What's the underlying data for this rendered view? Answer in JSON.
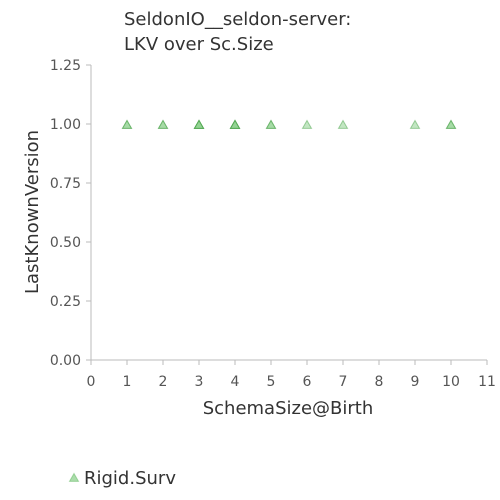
{
  "chart_data": {
    "type": "scatter",
    "title_lines": [
      "SeldonIO__seldon-server:",
      "LKV over Sc.Size"
    ],
    "xlabel": "SchemaSize@Birth",
    "ylabel": "LastKnownVersion",
    "xlim": [
      0,
      11
    ],
    "ylim": [
      0,
      1.25
    ],
    "x_ticks": [
      "0",
      "1",
      "2",
      "3",
      "4",
      "5",
      "6",
      "7",
      "8",
      "9",
      "10",
      "11"
    ],
    "y_ticks": [
      "0.00",
      "0.25",
      "0.50",
      "0.75",
      "1.00",
      "1.25"
    ],
    "grid": false,
    "legend_position": "bottom-left",
    "series": [
      {
        "name": "Rigid.Surv",
        "marker": "triangle",
        "color": "#8fd18f",
        "points": [
          {
            "x": 1,
            "y": 1.0,
            "count": 2
          },
          {
            "x": 2,
            "y": 1.0,
            "count": 2
          },
          {
            "x": 3,
            "y": 1.0,
            "count": 4
          },
          {
            "x": 4,
            "y": 1.0,
            "count": 4
          },
          {
            "x": 5,
            "y": 1.0,
            "count": 2
          },
          {
            "x": 6,
            "y": 1.0,
            "count": 1
          },
          {
            "x": 7,
            "y": 1.0,
            "count": 1
          },
          {
            "x": 9,
            "y": 1.0,
            "count": 1
          },
          {
            "x": 10,
            "y": 1.0,
            "count": 2
          }
        ]
      }
    ]
  }
}
